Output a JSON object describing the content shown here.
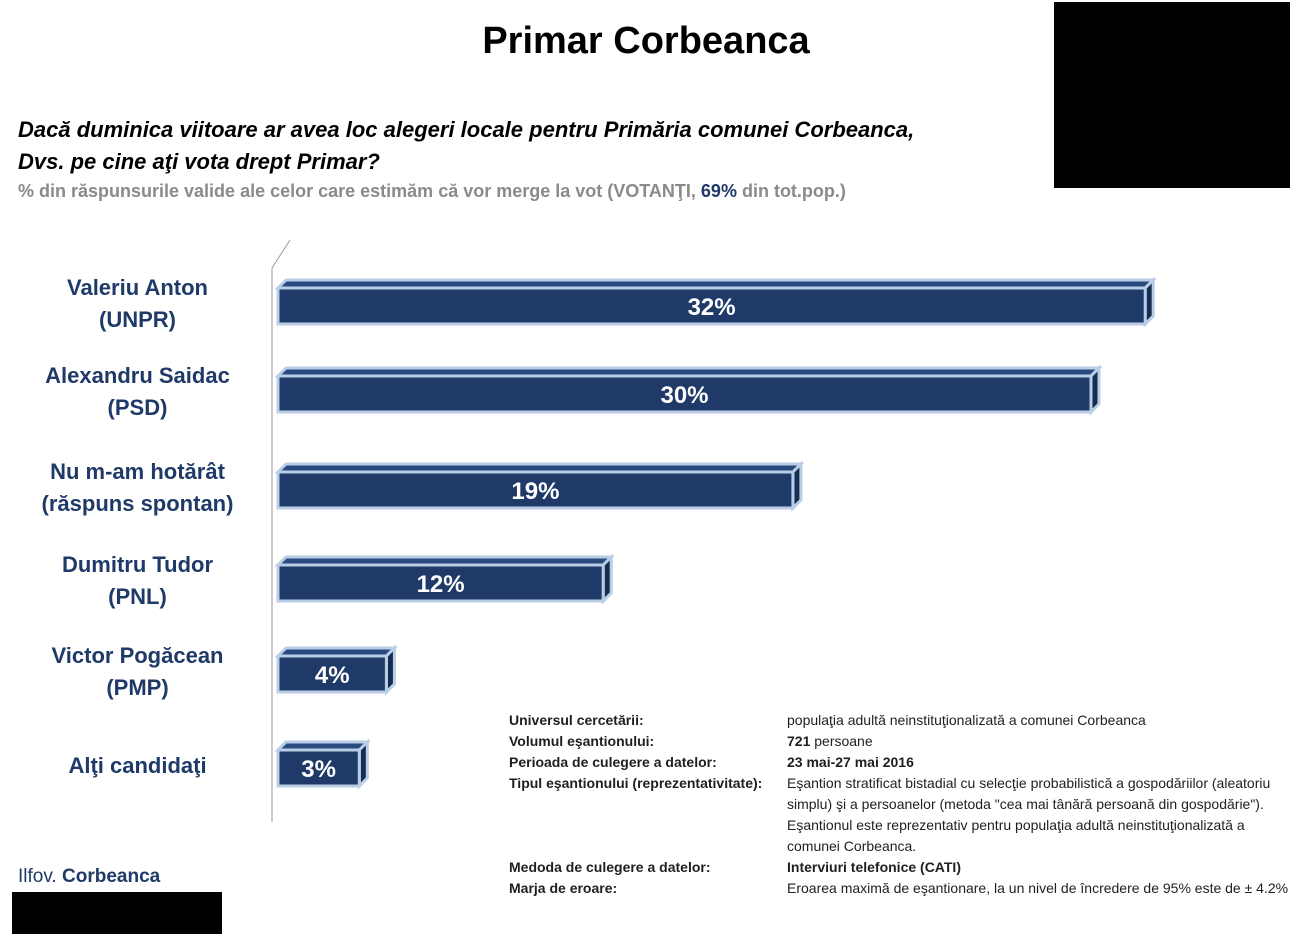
{
  "title": "Primar Corbeanca",
  "question_line1": "Dacă duminica viitoare ar avea loc alegeri locale pentru Primăria comunei Corbeanca,",
  "question_line2": "Dvs. pe cine aţi vota drept Primar?",
  "subtitle": {
    "before": "% din răspunsurile valide ale celor care estimăm că vor merge la vot (VOTANŢI, ",
    "highlight": "69%",
    "after": " din tot.pop.)"
  },
  "chart_data": {
    "type": "bar",
    "orientation": "horizontal",
    "categories": [
      [
        "Valeriu Anton",
        "(UNPR)"
      ],
      [
        "Alexandru Saidac",
        "(PSD)"
      ],
      [
        "Nu m-am hotărât",
        "(răspuns spontan)"
      ],
      [
        "Dumitru Tudor",
        "(PNL)"
      ],
      [
        "Victor Pogăcean",
        "(PMP)"
      ],
      [
        "Alţi candidaţi"
      ]
    ],
    "values": [
      32,
      30,
      19,
      12,
      4,
      3
    ],
    "data_labels": [
      "32%",
      "30%",
      "19%",
      "12%",
      "4%",
      "3%"
    ],
    "unit": "%",
    "bar_color": "#1f3a68",
    "bar_edge_color": "#b9cde6"
  },
  "footer": {
    "region": "Ilfov.",
    "locality": "Corbeanca"
  },
  "methodology": [
    {
      "key": "Universul cercetării:",
      "value": "populaţia adultă neinstituţionalizată a comunei Corbeanca",
      "bold": false
    },
    {
      "key": "Volumul eşantionului:",
      "value": "721 persoane",
      "bold": false,
      "bold_prefix": "721"
    },
    {
      "key": "Perioada de culegere a datelor:",
      "value": "23 mai-27 mai 2016",
      "bold": true
    },
    {
      "key": "Tipul eşantionului (reprezentativitate):",
      "value": "Eşantion stratificat bistadial cu selecţie probabilistică a gospodăriilor (aleatoriu simplu) şi a persoanelor (metoda \"cea mai tânără persoană din gospodărie\"). Eşantionul este reprezentativ pentru populaţia adultă neinstituţionalizată a comunei Corbeanca.",
      "bold": false
    },
    {
      "key": "Medoda de culegere a datelor:",
      "value": "Interviuri telefonice (CATI)",
      "bold": true
    },
    {
      "key": "Marja de eroare:",
      "value": "Eroarea maximă de eşantionare, la un nivel de încredere de 95% este de ± 4.2%",
      "bold": false
    }
  ]
}
